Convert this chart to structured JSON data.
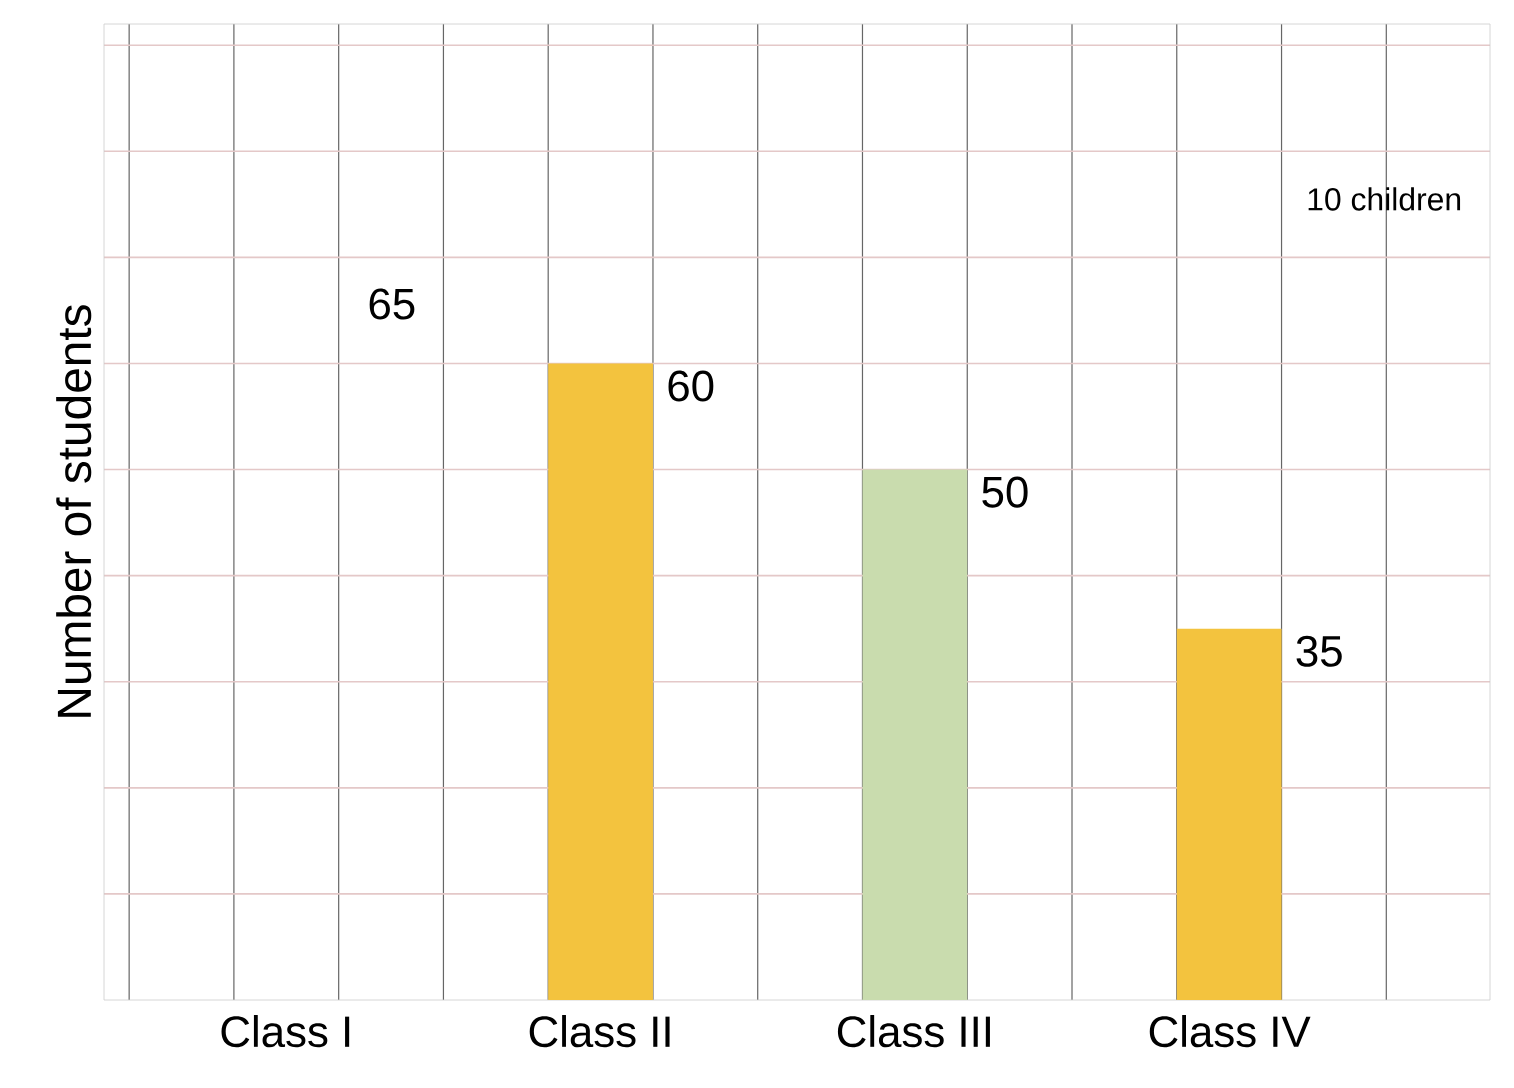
{
  "chart_data": {
    "type": "bar",
    "categories": [
      "Class I",
      "Class II",
      "Class III",
      "Class IV"
    ],
    "values": [
      null,
      60,
      50,
      35
    ],
    "colors": [
      "#f3c33e",
      "#f3c33e",
      "#c9dcae",
      "#f3c33e"
    ],
    "ylabel": "Number of students",
    "ylim": [
      0,
      92
    ],
    "yticks": [
      {
        "value": 10,
        "label": null
      },
      {
        "value": 20,
        "label": null
      },
      {
        "value": 30,
        "label": null
      },
      {
        "value": 40,
        "label": null
      },
      {
        "value": 50,
        "label": null
      },
      {
        "value": 60,
        "label": null
      },
      {
        "value": 70,
        "label": null
      },
      {
        "value": 80,
        "label": null
      },
      {
        "value": 90,
        "label": null
      }
    ],
    "tick_labels": "x",
    "grid": true,
    "data_labels": true,
    "annotations": [
      "65",
      "10 children"
    ]
  }
}
